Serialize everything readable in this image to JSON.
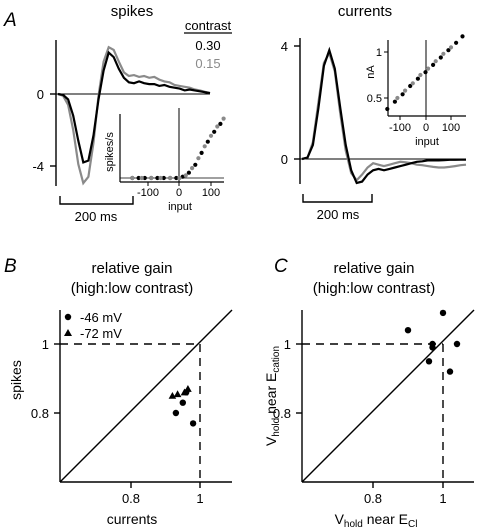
{
  "colors": {
    "black": "#000000",
    "gray": "#8a8a8a"
  },
  "panel_a": {
    "letter": "A",
    "spikes": {
      "title": "spikes",
      "legend_title": "contrast",
      "legend_entries": [
        "0.30",
        "0.15"
      ],
      "yticks": [
        "0",
        "-4"
      ],
      "scalebar": "200 ms"
    },
    "currents": {
      "title": "currents",
      "yticks": [
        "4",
        "0"
      ],
      "scalebar": "200 ms"
    }
  },
  "panel_b": {
    "letter": "B",
    "title_line1": "relative gain",
    "title_line2": "(high:low contrast)",
    "legend": [
      {
        "marker": "circle",
        "label": "-46 mV"
      },
      {
        "marker": "triangle",
        "label": "-72 mV"
      }
    ]
  },
  "panel_c": {
    "letter": "C",
    "title_line1": "relative gain",
    "title_line2": "(high:low contrast)"
  },
  "chart_data": [
    {
      "type": "line",
      "panel": "A",
      "title": "spikes",
      "legend_title": "contrast",
      "x_unit": "ms",
      "yticks": [
        0,
        -4
      ],
      "ylim": [
        -5.2,
        3.2
      ],
      "series": [
        {
          "name": "0.30",
          "color": "#000000",
          "x": [
            0,
            20,
            40,
            60,
            80,
            100,
            120,
            140,
            160,
            180,
            200,
            220,
            240,
            260,
            280,
            300,
            320,
            340,
            360,
            380,
            400,
            420,
            440,
            460,
            480,
            500,
            520,
            540,
            560,
            580,
            600
          ],
          "y": [
            0,
            -0.05,
            -0.3,
            -1.2,
            -2.6,
            -3.8,
            -3.7,
            -2.3,
            -0.3,
            1.3,
            2.3,
            2.05,
            1.4,
            0.9,
            0.65,
            0.6,
            0.7,
            0.6,
            0.55,
            0.55,
            0.45,
            0.5,
            0.4,
            0.35,
            0.3,
            0.2,
            0.25,
            0.2,
            0.15,
            0.1,
            0.05
          ]
        },
        {
          "name": "0.15",
          "color": "#8a8a8a",
          "x": [
            0,
            20,
            40,
            60,
            80,
            100,
            120,
            140,
            160,
            180,
            200,
            220,
            240,
            260,
            280,
            300,
            320,
            340,
            360,
            380,
            400,
            420,
            440,
            460,
            480,
            500,
            520,
            540,
            560,
            580,
            600
          ],
          "y": [
            0,
            -0.1,
            -0.6,
            -2.0,
            -3.9,
            -4.95,
            -4.6,
            -2.7,
            -0.1,
            1.8,
            2.6,
            2.45,
            1.8,
            1.2,
            1.0,
            1.05,
            0.95,
            1.0,
            0.9,
            0.95,
            0.8,
            0.7,
            0.65,
            0.5,
            0.45,
            0.4,
            0.35,
            0.25,
            0.2,
            0.12,
            0.05
          ]
        }
      ]
    },
    {
      "type": "scatter",
      "panel": "A-inset-spikes",
      "xlabel": "input",
      "ylabel": "spikes/s",
      "xticks": [
        -100,
        0,
        100
      ],
      "xlim": [
        -160,
        170
      ],
      "series": [
        {
          "name": "0.30",
          "color": "#000000",
          "x": [
            -150,
            -130,
            -110,
            -90,
            -70,
            -50,
            -30,
            -10,
            10,
            30,
            50,
            70,
            90,
            110,
            130
          ],
          "y": [
            0,
            0,
            0,
            0,
            0,
            0,
            0,
            0,
            0.02,
            0.08,
            0.2,
            0.38,
            0.55,
            0.7,
            0.82
          ]
        },
        {
          "name": "0.15",
          "color": "#8a8a8a",
          "x": [
            -150,
            -120,
            -90,
            -60,
            -30,
            0,
            20,
            40,
            60,
            80,
            100,
            120,
            140
          ],
          "y": [
            0,
            0,
            0,
            0,
            0,
            0,
            0.04,
            0.15,
            0.3,
            0.48,
            0.64,
            0.78,
            0.9
          ]
        }
      ]
    },
    {
      "type": "line",
      "panel": "A",
      "title": "currents",
      "x_unit": "ms",
      "yticks": [
        4,
        0
      ],
      "ylim": [
        -1.2,
        4.3
      ],
      "series": [
        {
          "name": "0.30",
          "color": "#000000",
          "x": [
            0,
            20,
            40,
            60,
            80,
            100,
            120,
            140,
            160,
            180,
            200,
            220,
            240,
            260,
            280,
            300,
            320,
            340,
            360,
            380,
            400,
            420,
            440,
            460,
            480,
            500,
            520,
            540,
            560,
            580,
            600
          ],
          "y": [
            0,
            0.05,
            0.5,
            1.8,
            3.3,
            3.85,
            3.2,
            1.8,
            0.5,
            -0.4,
            -0.85,
            -0.8,
            -0.55,
            -0.4,
            -0.35,
            -0.4,
            -0.35,
            -0.3,
            -0.25,
            -0.2,
            -0.15,
            -0.1,
            -0.08,
            -0.05,
            -0.05,
            -0.05,
            -0.04,
            -0.03,
            -0.03,
            -0.02,
            -0.02
          ]
        },
        {
          "name": "0.15",
          "color": "#8a8a8a",
          "x": [
            0,
            20,
            40,
            60,
            80,
            100,
            120,
            140,
            160,
            180,
            200,
            220,
            240,
            260,
            280,
            300,
            320,
            340,
            360,
            380,
            400,
            420,
            440,
            460,
            480,
            500,
            520,
            540,
            560,
            580,
            600
          ],
          "y": [
            0,
            0.05,
            0.6,
            2.0,
            3.4,
            3.75,
            3.1,
            1.6,
            0.3,
            -0.5,
            -0.75,
            -0.55,
            -0.3,
            -0.15,
            -0.2,
            -0.25,
            -0.2,
            -0.15,
            -0.1,
            -0.12,
            -0.15,
            -0.2,
            -0.22,
            -0.25,
            -0.28,
            -0.3,
            -0.3,
            -0.28,
            -0.25,
            -0.22,
            -0.2
          ]
        }
      ]
    },
    {
      "type": "scatter",
      "panel": "A-inset-currents",
      "xlabel": "input",
      "ylabel": "nA",
      "xticks": [
        -100,
        0,
        100
      ],
      "yticks": [
        1,
        0.5
      ],
      "xlim": [
        -160,
        170
      ],
      "ylim": [
        0.3,
        1.25
      ],
      "series": [
        {
          "name": "0.30",
          "color": "#000000",
          "x": [
            -150,
            -120,
            -90,
            -60,
            -30,
            0,
            30,
            60,
            90,
            120,
            145
          ],
          "y": [
            0.38,
            0.46,
            0.54,
            0.63,
            0.71,
            0.78,
            0.86,
            0.94,
            1.02,
            1.1,
            1.17
          ]
        },
        {
          "name": "0.15",
          "color": "#8a8a8a",
          "x": [
            -110,
            -80,
            -50,
            -20,
            10,
            40,
            70,
            100
          ],
          "y": [
            0.5,
            0.58,
            0.66,
            0.75,
            0.82,
            0.9,
            0.98,
            1.05
          ]
        }
      ]
    },
    {
      "type": "scatter",
      "panel": "B",
      "xlabel": "currents",
      "ylabel": "spikes",
      "xticks": [
        0.8,
        1
      ],
      "yticks": [
        0.8,
        1
      ],
      "xlim": [
        0.62,
        1.1
      ],
      "ylim": [
        0.62,
        1.1
      ],
      "series": [
        {
          "name": "-46 mV",
          "marker": "circle",
          "points": [
            [
              0.93,
              0.8
            ],
            [
              0.95,
              0.83
            ],
            [
              0.96,
              0.86
            ],
            [
              0.98,
              0.77
            ]
          ]
        },
        {
          "name": "-72 mV",
          "marker": "triangle",
          "points": [
            [
              0.92,
              0.85
            ],
            [
              0.935,
              0.855
            ],
            [
              0.955,
              0.86
            ],
            [
              0.965,
              0.87
            ]
          ]
        }
      ]
    },
    {
      "type": "scatter",
      "panel": "C",
      "xlabel": "V_hold near E_Cl",
      "ylabel": "V_hold near E_cation",
      "xticks": [
        0.8,
        1
      ],
      "yticks": [
        0.8,
        1
      ],
      "xlim": [
        0.62,
        1.1
      ],
      "ylim": [
        0.62,
        1.1
      ],
      "series": [
        {
          "marker": "circle",
          "points": [
            [
              0.9,
              1.04
            ],
            [
              1.0,
              1.09
            ],
            [
              0.97,
              1.0
            ],
            [
              0.97,
              0.99
            ],
            [
              0.96,
              0.95
            ],
            [
              1.02,
              0.92
            ],
            [
              1.04,
              1.0
            ]
          ]
        }
      ]
    }
  ]
}
